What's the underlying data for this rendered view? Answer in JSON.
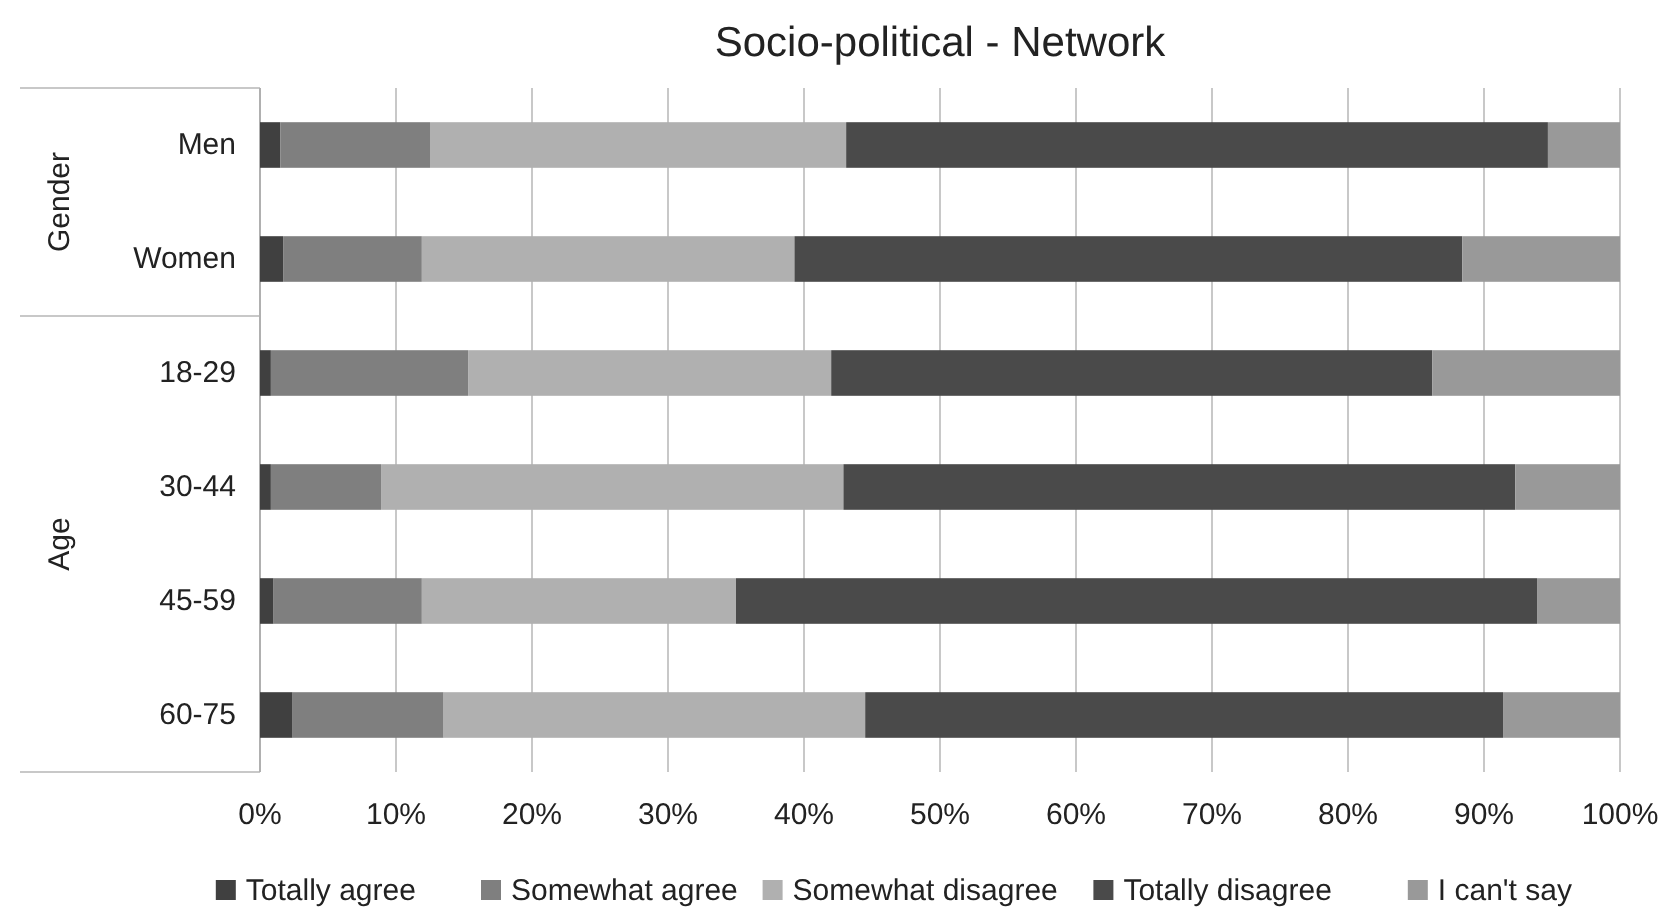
{
  "chart_data": {
    "type": "bar",
    "orientation": "horizontal",
    "stacked": true,
    "title": "Socio-political - Network",
    "categories": [
      "Men",
      "Women",
      "18-29",
      "30-44",
      "45-59",
      "60-75"
    ],
    "annotations": [
      "Gender",
      "Age"
    ],
    "series": [
      {
        "name": "Totally agree",
        "color": "#404040",
        "values": [
          1.5,
          1.7,
          0.8,
          0.8,
          1.0,
          2.4
        ]
      },
      {
        "name": "Somewhat agree",
        "color": "#7f7f7f",
        "values": [
          11,
          10.2,
          14.5,
          8.1,
          10.9,
          11.1
        ]
      },
      {
        "name": "Somewhat disagree",
        "color": "#b0b0b0",
        "values": [
          30.6,
          27.4,
          26.7,
          34.0,
          23.1,
          31.0
        ]
      },
      {
        "name": "Totally disagree",
        "color": "#4a4a4a",
        "values": [
          51.6,
          49.1,
          44.2,
          49.4,
          58.9,
          46.9
        ]
      },
      {
        "name": "I can't say",
        "color": "#999999",
        "values": [
          5.3,
          11.6,
          13.8,
          7.7,
          6.1,
          8.6
        ]
      }
    ],
    "xlim": [
      0,
      100
    ],
    "xticks": [
      {
        "value": 0,
        "label": "0%"
      },
      {
        "value": 10,
        "label": "10%"
      },
      {
        "value": 20,
        "label": "20%"
      },
      {
        "value": 30,
        "label": "30%"
      },
      {
        "value": 40,
        "label": "40%"
      },
      {
        "value": 50,
        "label": "50%"
      },
      {
        "value": 60,
        "label": "60%"
      },
      {
        "value": 70,
        "label": "70%"
      },
      {
        "value": 80,
        "label": "80%"
      },
      {
        "value": 90,
        "label": "90%"
      },
      {
        "value": 100,
        "label": "100%"
      }
    ],
    "grid": "x",
    "legend": "bottom"
  }
}
